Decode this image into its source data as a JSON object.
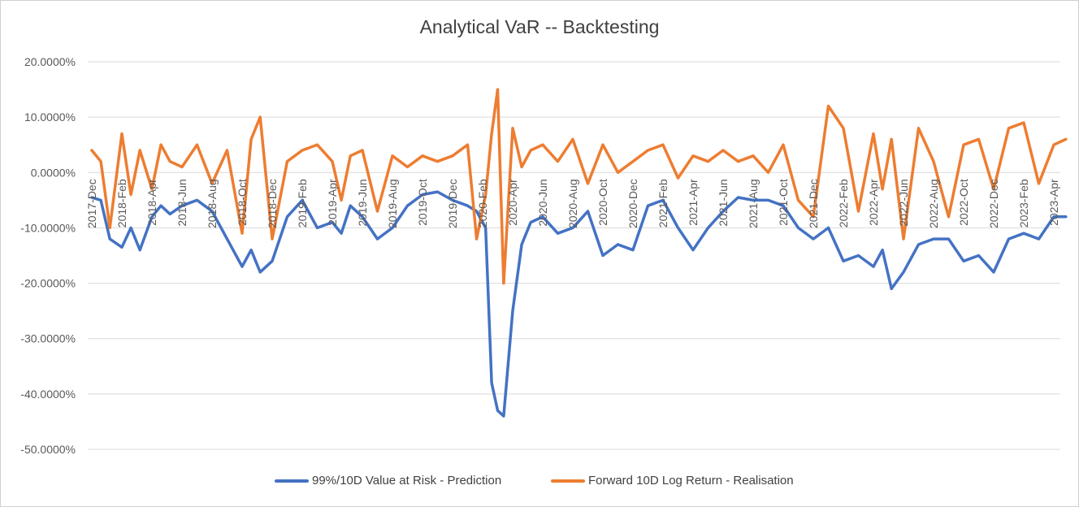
{
  "chart_data": {
    "type": "line",
    "title": "Analytical VaR  -- Backtesting",
    "xlabel": "",
    "ylabel": "",
    "ylim": [
      -0.5,
      0.2
    ],
    "y_ticks": [
      0.2,
      0.1,
      0.0,
      -0.1,
      -0.2,
      -0.3,
      -0.4,
      -0.5
    ],
    "y_tick_labels": [
      "20.0000%",
      "10.0000%",
      "0.0000%",
      "-10.0000%",
      "-20.0000%",
      "-30.0000%",
      "-40.0000%",
      "-50.0000%"
    ],
    "x_tick_labels": [
      "2017-Dec",
      "2018-Feb",
      "2018-Apr",
      "2018-Jun",
      "2018-Aug",
      "2018-Oct",
      "2018-Dec",
      "2019-Feb",
      "2019-Apr",
      "2019-Jun",
      "2019-Aug",
      "2019-Oct",
      "2019-Dec",
      "2020-Feb",
      "2020-Apr",
      "2020-Jun",
      "2020-Aug",
      "2020-Oct",
      "2020-Dec",
      "2021-Feb",
      "2021-Apr",
      "2021-Jun",
      "2021-Aug",
      "2021-Oct",
      "2021-Dec",
      "2022-Feb",
      "2022-Apr",
      "2022-Jun",
      "2022-Aug",
      "2022-Oct",
      "2022-Dec",
      "2023-Feb",
      "2023-Apr"
    ],
    "grid": true,
    "legend_position": "bottom",
    "series": [
      {
        "name": "99%/10D Value at Risk - Prediction",
        "color": "#4472C4",
        "x": [
          0,
          0.3,
          0.6,
          1.0,
          1.3,
          1.6,
          2.0,
          2.3,
          2.6,
          3.0,
          3.5,
          4.0,
          4.5,
          5.0,
          5.3,
          5.6,
          6.0,
          6.5,
          7.0,
          7.5,
          8.0,
          8.3,
          8.6,
          9.0,
          9.5,
          10.0,
          10.5,
          11.0,
          11.5,
          12.0,
          12.5,
          12.8,
          13.1,
          13.3,
          13.5,
          13.7,
          14.0,
          14.3,
          14.6,
          15.0,
          15.5,
          16.0,
          16.5,
          17.0,
          17.5,
          18.0,
          18.5,
          19.0,
          19.5,
          20.0,
          20.5,
          21.0,
          21.5,
          22.0,
          22.5,
          23.0,
          23.5,
          24.0,
          24.5,
          25.0,
          25.5,
          26.0,
          26.3,
          26.6,
          27.0,
          27.5,
          28.0,
          28.5,
          29.0,
          29.5,
          30.0,
          30.5,
          31.0,
          31.5,
          32.0,
          32.4
        ],
        "values": [
          -0.045,
          -0.05,
          -0.12,
          -0.135,
          -0.1,
          -0.14,
          -0.08,
          -0.06,
          -0.075,
          -0.06,
          -0.05,
          -0.07,
          -0.12,
          -0.17,
          -0.14,
          -0.18,
          -0.16,
          -0.08,
          -0.05,
          -0.1,
          -0.09,
          -0.11,
          -0.06,
          -0.08,
          -0.12,
          -0.1,
          -0.06,
          -0.04,
          -0.035,
          -0.05,
          -0.06,
          -0.07,
          -0.1,
          -0.38,
          -0.43,
          -0.44,
          -0.25,
          -0.13,
          -0.09,
          -0.08,
          -0.11,
          -0.1,
          -0.07,
          -0.15,
          -0.13,
          -0.14,
          -0.06,
          -0.05,
          -0.1,
          -0.14,
          -0.1,
          -0.07,
          -0.045,
          -0.05,
          -0.05,
          -0.06,
          -0.1,
          -0.12,
          -0.1,
          -0.16,
          -0.15,
          -0.17,
          -0.14,
          -0.21,
          -0.18,
          -0.13,
          -0.12,
          -0.12,
          -0.16,
          -0.15,
          -0.18,
          -0.12,
          -0.11,
          -0.12,
          -0.08,
          -0.08
        ]
      },
      {
        "name": "Forward 10D Log Return - Realisation",
        "color": "#ED7D31",
        "x": [
          0,
          0.3,
          0.6,
          1.0,
          1.3,
          1.6,
          2.0,
          2.3,
          2.6,
          3.0,
          3.5,
          4.0,
          4.5,
          5.0,
          5.3,
          5.6,
          6.0,
          6.5,
          7.0,
          7.5,
          8.0,
          8.3,
          8.6,
          9.0,
          9.5,
          10.0,
          10.5,
          11.0,
          11.5,
          12.0,
          12.5,
          12.8,
          13.1,
          13.3,
          13.5,
          13.7,
          14.0,
          14.3,
          14.6,
          15.0,
          15.5,
          16.0,
          16.5,
          17.0,
          17.5,
          18.0,
          18.5,
          19.0,
          19.5,
          20.0,
          20.5,
          21.0,
          21.5,
          22.0,
          22.5,
          23.0,
          23.5,
          24.0,
          24.5,
          25.0,
          25.5,
          26.0,
          26.3,
          26.6,
          27.0,
          27.5,
          28.0,
          28.5,
          29.0,
          29.5,
          30.0,
          30.5,
          31.0,
          31.5,
          32.0,
          32.4
        ],
        "values": [
          0.04,
          0.02,
          -0.1,
          0.07,
          -0.04,
          0.04,
          -0.03,
          0.05,
          0.02,
          0.01,
          0.05,
          -0.02,
          0.04,
          -0.11,
          0.06,
          0.1,
          -0.12,
          0.02,
          0.04,
          0.05,
          0.02,
          -0.05,
          0.03,
          0.04,
          -0.07,
          0.03,
          0.01,
          0.03,
          0.02,
          0.03,
          0.05,
          -0.12,
          -0.04,
          0.07,
          0.15,
          -0.2,
          0.08,
          0.01,
          0.04,
          0.05,
          0.02,
          0.06,
          -0.02,
          0.05,
          0.0,
          0.02,
          0.04,
          0.05,
          -0.01,
          0.03,
          0.02,
          0.04,
          0.02,
          0.03,
          0.0,
          0.05,
          -0.05,
          -0.08,
          0.12,
          0.08,
          -0.07,
          0.07,
          -0.03,
          0.06,
          -0.12,
          0.08,
          0.02,
          -0.08,
          0.05,
          0.06,
          -0.03,
          0.08,
          0.09,
          -0.02,
          0.05,
          0.06
        ]
      }
    ]
  }
}
